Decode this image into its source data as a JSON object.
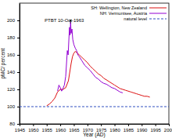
{
  "chart_data": {
    "type": "line",
    "x_label": "Year (AD)",
    "y_label": "pMC/ percent",
    "xlim": [
      1945,
      2000
    ],
    "xticks": [
      1945,
      1950,
      1955,
      1960,
      1965,
      1970,
      1975,
      1980,
      1985,
      1990,
      1995,
      2000
    ],
    "ylim": [
      80,
      220
    ],
    "yticks": [
      80,
      100,
      120,
      140,
      160,
      180,
      200
    ],
    "legend": "top-right",
    "series": [
      {
        "name": "SH: Wellington, New Zealand",
        "color": "#dd1111",
        "line_style": "solid",
        "x": [
          1955,
          1956,
          1957,
          1958,
          1959,
          1960,
          1961,
          1962,
          1963,
          1964,
          1964.5,
          1965,
          1965.5,
          1966,
          1967,
          1968,
          1969,
          1970,
          1971,
          1972,
          1973,
          1974,
          1975,
          1976,
          1977,
          1978,
          1979,
          1980,
          1981,
          1982,
          1983,
          1984,
          1985,
          1986,
          1987,
          1988,
          1989,
          1990,
          1991,
          1992,
          1993
        ],
        "values": [
          101,
          103,
          106,
          110,
          117,
          120,
          120,
          122,
          130,
          150,
          158,
          162,
          164,
          163,
          160,
          157,
          154,
          151,
          147,
          144,
          141,
          138,
          136,
          133,
          131,
          129,
          127,
          125,
          123,
          121,
          120,
          119,
          118,
          117,
          116,
          115,
          114,
          113,
          112,
          112,
          111
        ]
      },
      {
        "name": "NH: Vermuntsee, Austria",
        "color": "#9400d3",
        "line_style": "solid",
        "x": [
          1959,
          1959.5,
          1960,
          1960.5,
          1961,
          1961.5,
          1962,
          1962.3,
          1962.6,
          1962.9,
          1963.2,
          1963.4,
          1963.6,
          1963.8,
          1964,
          1964.3,
          1964.6,
          1965,
          1965.5,
          1966,
          1966.5,
          1967,
          1968,
          1969,
          1970,
          1971,
          1972,
          1973,
          1974,
          1975,
          1976,
          1977,
          1978,
          1979,
          1980,
          1981,
          1982,
          1983
        ],
        "values": [
          118,
          125,
          122,
          118,
          121,
          125,
          135,
          150,
          165,
          160,
          180,
          192,
          183,
          198,
          185,
          190,
          178,
          172,
          168,
          165,
          160,
          158,
          153,
          148,
          145,
          142,
          138,
          134,
          132,
          129,
          127,
          126,
          124,
          122,
          121,
          119,
          117,
          116
        ]
      },
      {
        "name": "natural level",
        "color": "#3050c0",
        "line_style": "dashed",
        "x": [
          1945,
          2000
        ],
        "values": [
          100,
          100
        ]
      }
    ],
    "annotations": [
      {
        "text": "PTBT 10-Oct-1963",
        "x": 1963.78,
        "y": 198
      }
    ]
  }
}
